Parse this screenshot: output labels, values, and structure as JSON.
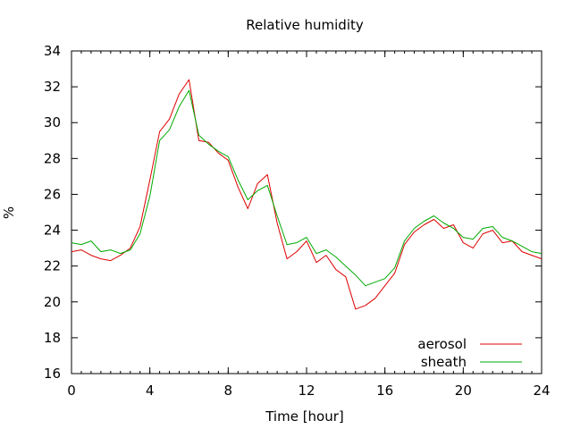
{
  "chart_data": {
    "type": "line",
    "title": "Relative humidity",
    "xlabel": "Time [hour]",
    "ylabel": "%",
    "xlim": [
      0,
      24
    ],
    "ylim": [
      16,
      34
    ],
    "x_ticks": [
      0,
      4,
      8,
      12,
      16,
      20,
      24
    ],
    "y_ticks": [
      16,
      18,
      20,
      22,
      24,
      26,
      28,
      30,
      32,
      34
    ],
    "grid": false,
    "legend_position": "bottom-right",
    "x": [
      0,
      0.5,
      1,
      1.5,
      2,
      2.5,
      3,
      3.5,
      4,
      4.5,
      5,
      5.5,
      6,
      6.5,
      7,
      7.5,
      8,
      8.5,
      9,
      9.5,
      10,
      10.5,
      11,
      11.5,
      12,
      12.5,
      13,
      13.5,
      14,
      14.5,
      15,
      15.5,
      16,
      16.5,
      17,
      17.5,
      18,
      18.5,
      19,
      19.5,
      20,
      20.5,
      21,
      21.5,
      22,
      22.5,
      23,
      23.5,
      24
    ],
    "series": [
      {
        "name": "aerosol",
        "color": "#dd0000",
        "values": [
          22.8,
          22.9,
          22.6,
          22.4,
          22.3,
          22.6,
          23.0,
          24.2,
          26.8,
          29.5,
          30.2,
          31.6,
          32.4,
          29.0,
          28.9,
          28.3,
          27.9,
          26.4,
          25.2,
          26.6,
          27.1,
          24.4,
          22.4,
          22.8,
          23.4,
          22.2,
          22.6,
          21.8,
          21.4,
          19.6,
          19.8,
          20.2,
          20.9,
          21.6,
          23.2,
          23.9,
          24.3,
          24.6,
          24.1,
          24.3,
          23.3,
          23.0,
          23.8,
          24.0,
          23.3,
          23.4,
          22.8,
          22.6,
          22.4
        ]
      },
      {
        "name": "sheath",
        "color": "#00aa00",
        "values": [
          23.3,
          23.2,
          23.4,
          22.8,
          22.9,
          22.7,
          22.9,
          23.8,
          25.9,
          29.0,
          29.6,
          30.9,
          31.8,
          29.3,
          28.8,
          28.4,
          28.1,
          26.8,
          25.7,
          26.2,
          26.5,
          24.8,
          23.2,
          23.3,
          23.6,
          22.7,
          22.9,
          22.5,
          22.0,
          21.5,
          20.9,
          21.1,
          21.3,
          21.9,
          23.4,
          24.1,
          24.5,
          24.8,
          24.4,
          24.1,
          23.6,
          23.5,
          24.1,
          24.2,
          23.6,
          23.4,
          23.1,
          22.8,
          22.7
        ]
      }
    ]
  }
}
